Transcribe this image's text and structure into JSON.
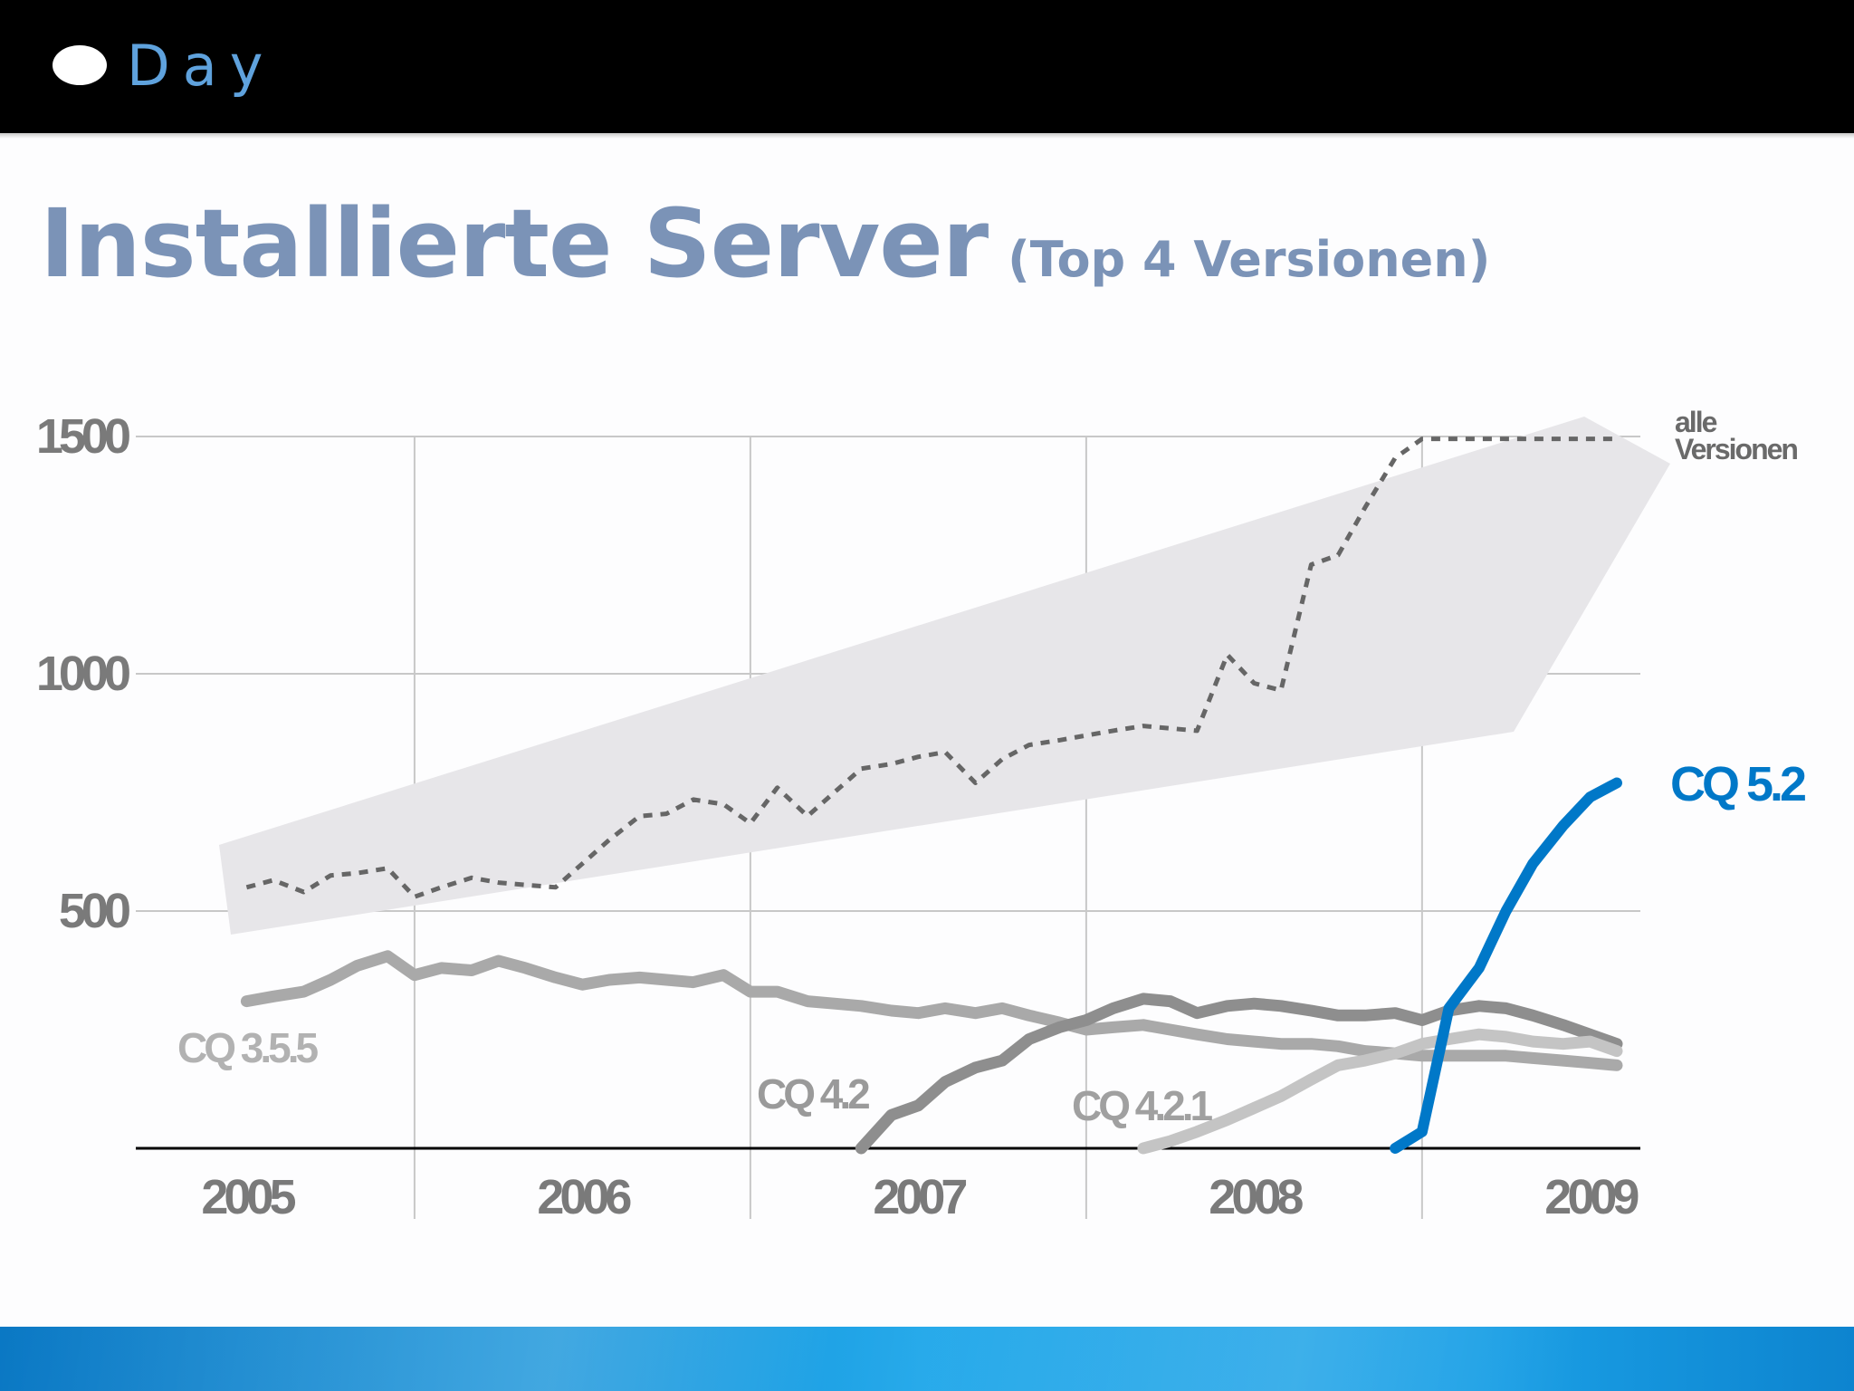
{
  "header": {
    "logo_text": "Day"
  },
  "title": {
    "main": "Installierte Server",
    "sub": "(Top 4 Versionen)"
  },
  "colors": {
    "accent": "#0078c8",
    "title": "#7b93b7"
  },
  "chart_data": {
    "type": "line",
    "title": "Installierte Server (Top 4 Versionen)",
    "xlabel": "",
    "ylabel": "",
    "x_ticks": [
      "2005",
      "2006",
      "2007",
      "2008",
      "2009"
    ],
    "y_ticks": [
      500,
      1000,
      1500
    ],
    "xlim": [
      2004.67,
      2009.15
    ],
    "ylim": [
      0,
      1500
    ],
    "grid": true,
    "series": [
      {
        "name": "alle Versionen",
        "style": "dotted",
        "color": "#666666",
        "x": [
          2005.0,
          2005.08,
          2005.17,
          2005.25,
          2005.33,
          2005.42,
          2005.5,
          2005.58,
          2005.67,
          2005.75,
          2005.83,
          2005.92,
          2006.0,
          2006.08,
          2006.17,
          2006.25,
          2006.33,
          2006.42,
          2006.5,
          2006.58,
          2006.67,
          2006.75,
          2006.83,
          2006.92,
          2007.0,
          2007.08,
          2007.17,
          2007.25,
          2007.33,
          2007.42,
          2007.5,
          2007.58,
          2007.67,
          2007.75,
          2007.83,
          2007.92,
          2008.0,
          2008.08,
          2008.17,
          2008.25,
          2008.33,
          2008.42,
          2008.5,
          2008.58,
          2008.67,
          2008.75,
          2008.83,
          2008.92,
          2009.0,
          2009.08
        ],
        "y": [
          550,
          565,
          540,
          575,
          580,
          590,
          530,
          550,
          570,
          560,
          555,
          550,
          600,
          650,
          700,
          705,
          735,
          725,
          685,
          760,
          700,
          750,
          800,
          810,
          825,
          835,
          770,
          820,
          850,
          860,
          870,
          880,
          890,
          885,
          880,
          1040,
          980,
          965,
          1230,
          1250,
          1350,
          1455,
          1495,
          1495,
          1495,
          1495,
          1495,
          1495,
          1495,
          1495
        ]
      },
      {
        "name": "CQ 3.5.5",
        "color": "#a9a9a9",
        "x": [
          2005.0,
          2005.08,
          2005.17,
          2005.25,
          2005.33,
          2005.42,
          2005.5,
          2005.58,
          2005.67,
          2005.75,
          2005.83,
          2005.92,
          2006.0,
          2006.08,
          2006.17,
          2006.25,
          2006.33,
          2006.42,
          2006.5,
          2006.58,
          2006.67,
          2006.75,
          2006.83,
          2006.92,
          2007.0,
          2007.08,
          2007.17,
          2007.25,
          2007.33,
          2007.42,
          2007.5,
          2007.58,
          2007.67,
          2007.75,
          2007.83,
          2007.92,
          2008.0,
          2008.08,
          2008.17,
          2008.25,
          2008.33,
          2008.42,
          2008.5,
          2008.58,
          2008.67,
          2008.75,
          2008.83,
          2008.92,
          2009.0,
          2009.08
        ],
        "y": [
          310,
          320,
          330,
          355,
          385,
          405,
          365,
          380,
          375,
          395,
          380,
          360,
          345,
          355,
          360,
          355,
          350,
          365,
          330,
          330,
          310,
          305,
          300,
          290,
          285,
          295,
          285,
          295,
          280,
          265,
          250,
          255,
          260,
          250,
          240,
          230,
          225,
          220,
          220,
          215,
          205,
          200,
          195,
          195,
          195,
          195,
          190,
          185,
          180,
          175
        ]
      },
      {
        "name": "CQ 4.2",
        "color": "#8e8e8e",
        "x": [
          2006.83,
          2006.92,
          2007.0,
          2007.08,
          2007.17,
          2007.25,
          2007.33,
          2007.42,
          2007.5,
          2007.58,
          2007.67,
          2007.75,
          2007.83,
          2007.92,
          2008.0,
          2008.08,
          2008.17,
          2008.25,
          2008.33,
          2008.42,
          2008.5,
          2008.58,
          2008.67,
          2008.75,
          2008.83,
          2008.92,
          2009.0,
          2009.08
        ],
        "y": [
          0,
          70,
          90,
          140,
          170,
          185,
          230,
          255,
          270,
          295,
          315,
          310,
          285,
          300,
          305,
          300,
          290,
          280,
          280,
          285,
          270,
          290,
          300,
          295,
          280,
          260,
          240,
          220
        ]
      },
      {
        "name": "CQ 4.2.1",
        "color": "#c4c4c4",
        "x": [
          2007.67,
          2007.75,
          2007.83,
          2007.92,
          2008.0,
          2008.08,
          2008.17,
          2008.25,
          2008.33,
          2008.42,
          2008.5,
          2008.58,
          2008.67,
          2008.75,
          2008.83,
          2008.92,
          2009.0,
          2009.08
        ],
        "y": [
          0,
          15,
          35,
          60,
          85,
          110,
          145,
          175,
          185,
          200,
          220,
          230,
          240,
          235,
          225,
          220,
          225,
          205
        ]
      },
      {
        "name": "CQ 5.2",
        "color": "#0078c8",
        "x": [
          2008.42,
          2008.5,
          2008.58,
          2008.67,
          2008.75,
          2008.83,
          2008.92,
          2009.0,
          2009.08
        ],
        "y": [
          0,
          35,
          295,
          380,
          500,
          600,
          680,
          740,
          770
        ]
      }
    ],
    "series_labels": [
      "alle",
      "Versionen",
      "CQ 5.2",
      "CQ 3.5.5",
      "CQ 4.2",
      "CQ 4.2.1"
    ],
    "annotations": [
      "highlight band around total trend"
    ]
  }
}
